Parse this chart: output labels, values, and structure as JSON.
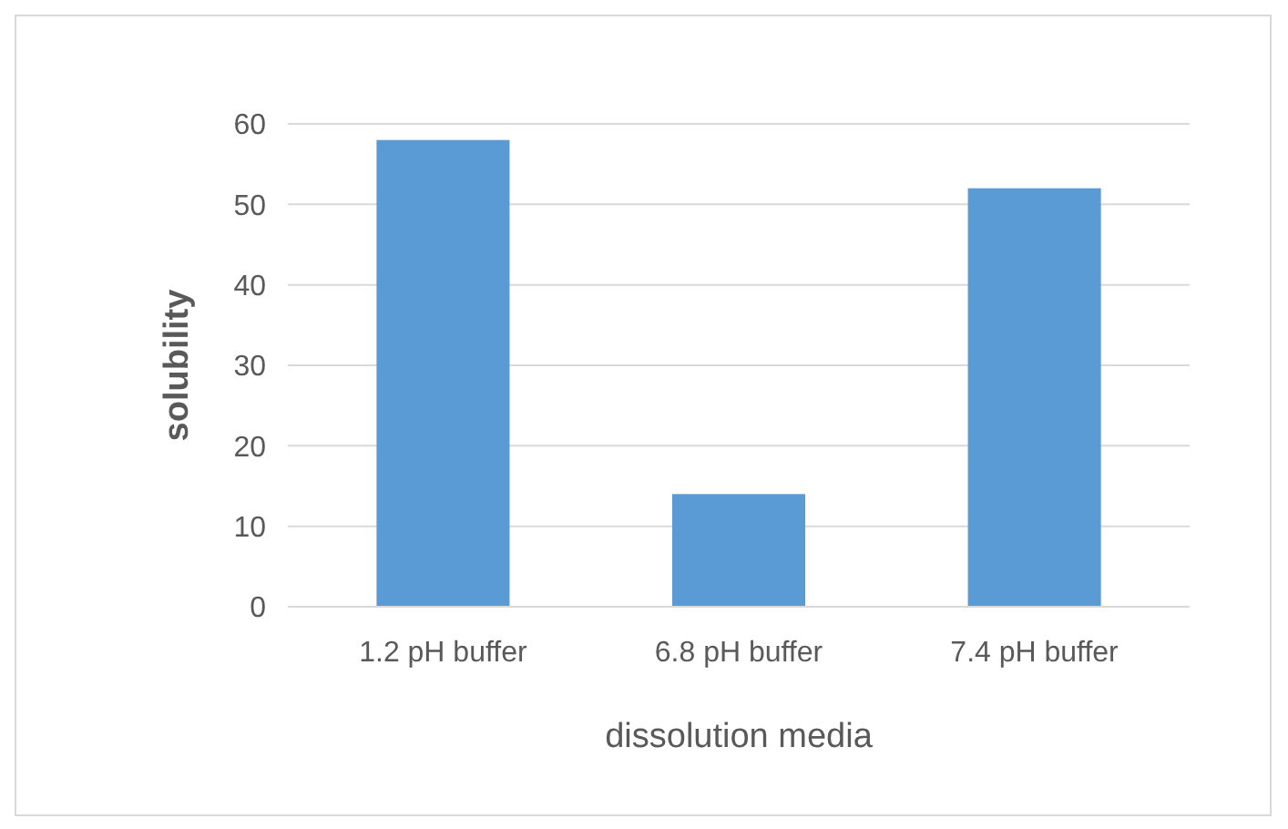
{
  "chart_data": {
    "type": "bar",
    "categories": [
      "1.2 pH buffer",
      "6.8 pH buffer",
      "7.4 pH buffer"
    ],
    "values": [
      58,
      14,
      52
    ],
    "color": "#5b9bd5",
    "xlabel": "dissolution media",
    "ylabel": "solubility",
    "ylim": [
      0,
      60
    ],
    "yticks": [
      0,
      10,
      20,
      30,
      40,
      50,
      60
    ],
    "grid": "y"
  }
}
